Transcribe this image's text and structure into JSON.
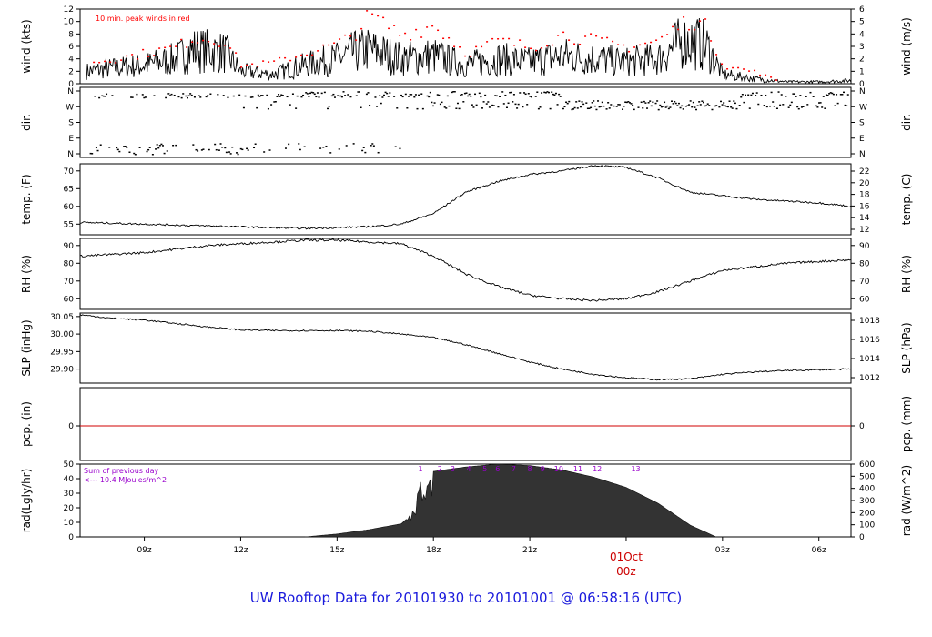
{
  "title": "UW Rooftop Data for 20101930  to  20101001 @ 06:58:16  (UTC)",
  "colors": {
    "line": "#000000",
    "peak": "#ff0000",
    "precip": "#d00000",
    "axis": "#000000",
    "rad_labels": "#9900cc",
    "date_label": "#cc0000",
    "footer": "#1a1adc"
  },
  "x_axis": {
    "ticks": [
      {
        "hour": 9,
        "label": "09z"
      },
      {
        "hour": 12,
        "label": "12z"
      },
      {
        "hour": 15,
        "label": "15z"
      },
      {
        "hour": 18,
        "label": "18z"
      },
      {
        "hour": 21,
        "label": "21z"
      },
      {
        "hour": 27,
        "label": "03z"
      },
      {
        "hour": 30,
        "label": "06z"
      }
    ],
    "date_label": "01Oct",
    "date_sub": "00z",
    "range_hours": [
      7.0,
      31.0
    ]
  },
  "chart_data": [
    {
      "type": "line",
      "id": "wind",
      "ylabel_left": "wind (kts)",
      "ylabel_right": "wind (m/s)",
      "ylim": [
        0,
        12
      ],
      "yticks_left": [
        "0",
        "2",
        "4",
        "6",
        "8",
        "10",
        "12"
      ],
      "yticks_right": [
        "0",
        "1",
        "2",
        "3",
        "4",
        "5",
        "6"
      ],
      "annotation": "10 min. peak winds in red",
      "x_hours": [
        7.2,
        8,
        9,
        10,
        10.5,
        11.5,
        12,
        13,
        14,
        15,
        15.5,
        16,
        17,
        18,
        19,
        20,
        21,
        22,
        23,
        24,
        25,
        25.5,
        26,
        26.5,
        27,
        28,
        29,
        30,
        31
      ],
      "values": [
        2,
        2.5,
        3,
        4,
        5.5,
        5,
        2,
        1.5,
        3,
        4,
        5,
        5.5,
        4,
        4.5,
        3,
        4,
        3.5,
        4.5,
        4,
        3.5,
        4,
        6,
        7,
        6,
        1.5,
        0.8,
        0.3,
        0.3,
        0.5
      ],
      "peaks": [
        3.5,
        4,
        5,
        6,
        7.5,
        7,
        3,
        3.5,
        5,
        6.5,
        8,
        11,
        8,
        9.5,
        5,
        7,
        6,
        8,
        7,
        6,
        7,
        9,
        10.5,
        9,
        3,
        2,
        0,
        0,
        0
      ]
    },
    {
      "type": "scatter",
      "id": "dir",
      "ylabel_left": "dir.",
      "ylabel_right": "dir.",
      "categories_y": [
        "N",
        "E",
        "S",
        "W",
        "N"
      ],
      "yticks_left": [
        "N",
        "E",
        "S",
        "W",
        "N"
      ],
      "yticks_right": [
        "N",
        "E",
        "S",
        "W",
        "N"
      ]
    },
    {
      "type": "line",
      "id": "temp",
      "ylabel_left": "temp. (F)",
      "ylabel_right": "temp. (C)",
      "ylim": [
        52,
        72
      ],
      "yticks_left": [
        "55",
        "60",
        "65",
        "70"
      ],
      "yticks_right": [
        "12",
        "14",
        "16",
        "18",
        "20",
        "22"
      ],
      "x_hours": [
        7,
        9,
        11,
        13,
        14,
        15,
        16,
        17,
        18,
        19,
        20,
        21,
        22,
        23,
        24,
        25,
        26,
        27,
        28,
        29,
        30,
        31
      ],
      "values": [
        55.5,
        55,
        54.5,
        54,
        53.8,
        54,
        54.3,
        55,
        58,
        64,
        67,
        69,
        70,
        71.5,
        71,
        68,
        64,
        63,
        62,
        61.5,
        61,
        60
      ]
    },
    {
      "type": "line",
      "id": "rh",
      "ylabel_left": "RH (%)",
      "ylabel_right": "RH (%)",
      "ylim": [
        54,
        94
      ],
      "yticks_left": [
        "60",
        "70",
        "80",
        "90"
      ],
      "yticks_right": [
        "60",
        "70",
        "80",
        "90"
      ],
      "x_hours": [
        7,
        9,
        11,
        13,
        14,
        15,
        16,
        17,
        18,
        19,
        20,
        21,
        22,
        23,
        24,
        25,
        26,
        27,
        28,
        29,
        30,
        31
      ],
      "values": [
        84,
        86,
        90,
        92,
        93,
        93,
        92,
        91,
        84,
        74,
        67,
        62,
        60,
        59,
        60,
        64,
        70,
        76,
        78,
        80,
        81,
        82
      ]
    },
    {
      "type": "line",
      "id": "slp",
      "ylabel_left": "SLP (inHg)",
      "ylabel_right": "SLP (hPa)",
      "ylim": [
        29.86,
        30.06
      ],
      "yticks_left": [
        "29.90",
        "29.95",
        "30.00",
        "30.05"
      ],
      "yticks_right": [
        "1012",
        "1014",
        "1016",
        "1018"
      ],
      "x_hours": [
        7,
        8,
        9,
        10,
        11,
        12,
        13,
        14,
        15,
        16,
        17,
        18,
        19,
        20,
        21,
        22,
        23,
        24,
        25,
        26,
        27,
        28,
        29,
        30,
        31
      ],
      "values": [
        30.055,
        30.045,
        30.04,
        30.03,
        30.02,
        30.012,
        30.01,
        30.01,
        30.01,
        30.008,
        30.0,
        29.99,
        29.97,
        29.945,
        29.92,
        29.9,
        29.885,
        29.875,
        29.87,
        29.872,
        29.885,
        29.892,
        29.896,
        29.898,
        29.9
      ]
    },
    {
      "type": "line",
      "id": "pcp",
      "ylabel_left": "pcp. (in)",
      "ylabel_right": "pcp. (mm)",
      "yticks_left": [
        "0"
      ],
      "yticks_right": [
        "0"
      ],
      "values": [
        0
      ]
    },
    {
      "type": "area",
      "id": "rad",
      "ylabel_left": "rad(Lgly/hr)",
      "ylabel_right": "rad (W/m^2)",
      "ylim": [
        0,
        50
      ],
      "yticks_left": [
        "0",
        "10",
        "20",
        "30",
        "40",
        "50"
      ],
      "yticks_right": [
        "0",
        "100",
        "200",
        "300",
        "400",
        "500",
        "600"
      ],
      "annotation_line1": "Sum of previous day",
      "annotation_line2": "<--- 10.4 MJoules/m^2",
      "x_hours": [
        14,
        15,
        16,
        17,
        17.3,
        17.6,
        18,
        19,
        20,
        21,
        22,
        23,
        24,
        25,
        26,
        26.8
      ],
      "values": [
        0,
        2,
        5,
        9,
        15,
        35,
        45,
        48,
        50,
        49,
        46,
        41,
        34,
        23,
        8,
        0
      ],
      "hour_labels": [
        "1",
        "2",
        "3",
        "4",
        "5",
        "6",
        "7",
        "8",
        "9",
        "10",
        "11",
        "12",
        "13"
      ],
      "hour_label_x": [
        17.6,
        18.2,
        18.6,
        19.1,
        19.6,
        20.0,
        20.5,
        21.0,
        21.4,
        21.9,
        22.5,
        23.1,
        24.3
      ]
    }
  ]
}
